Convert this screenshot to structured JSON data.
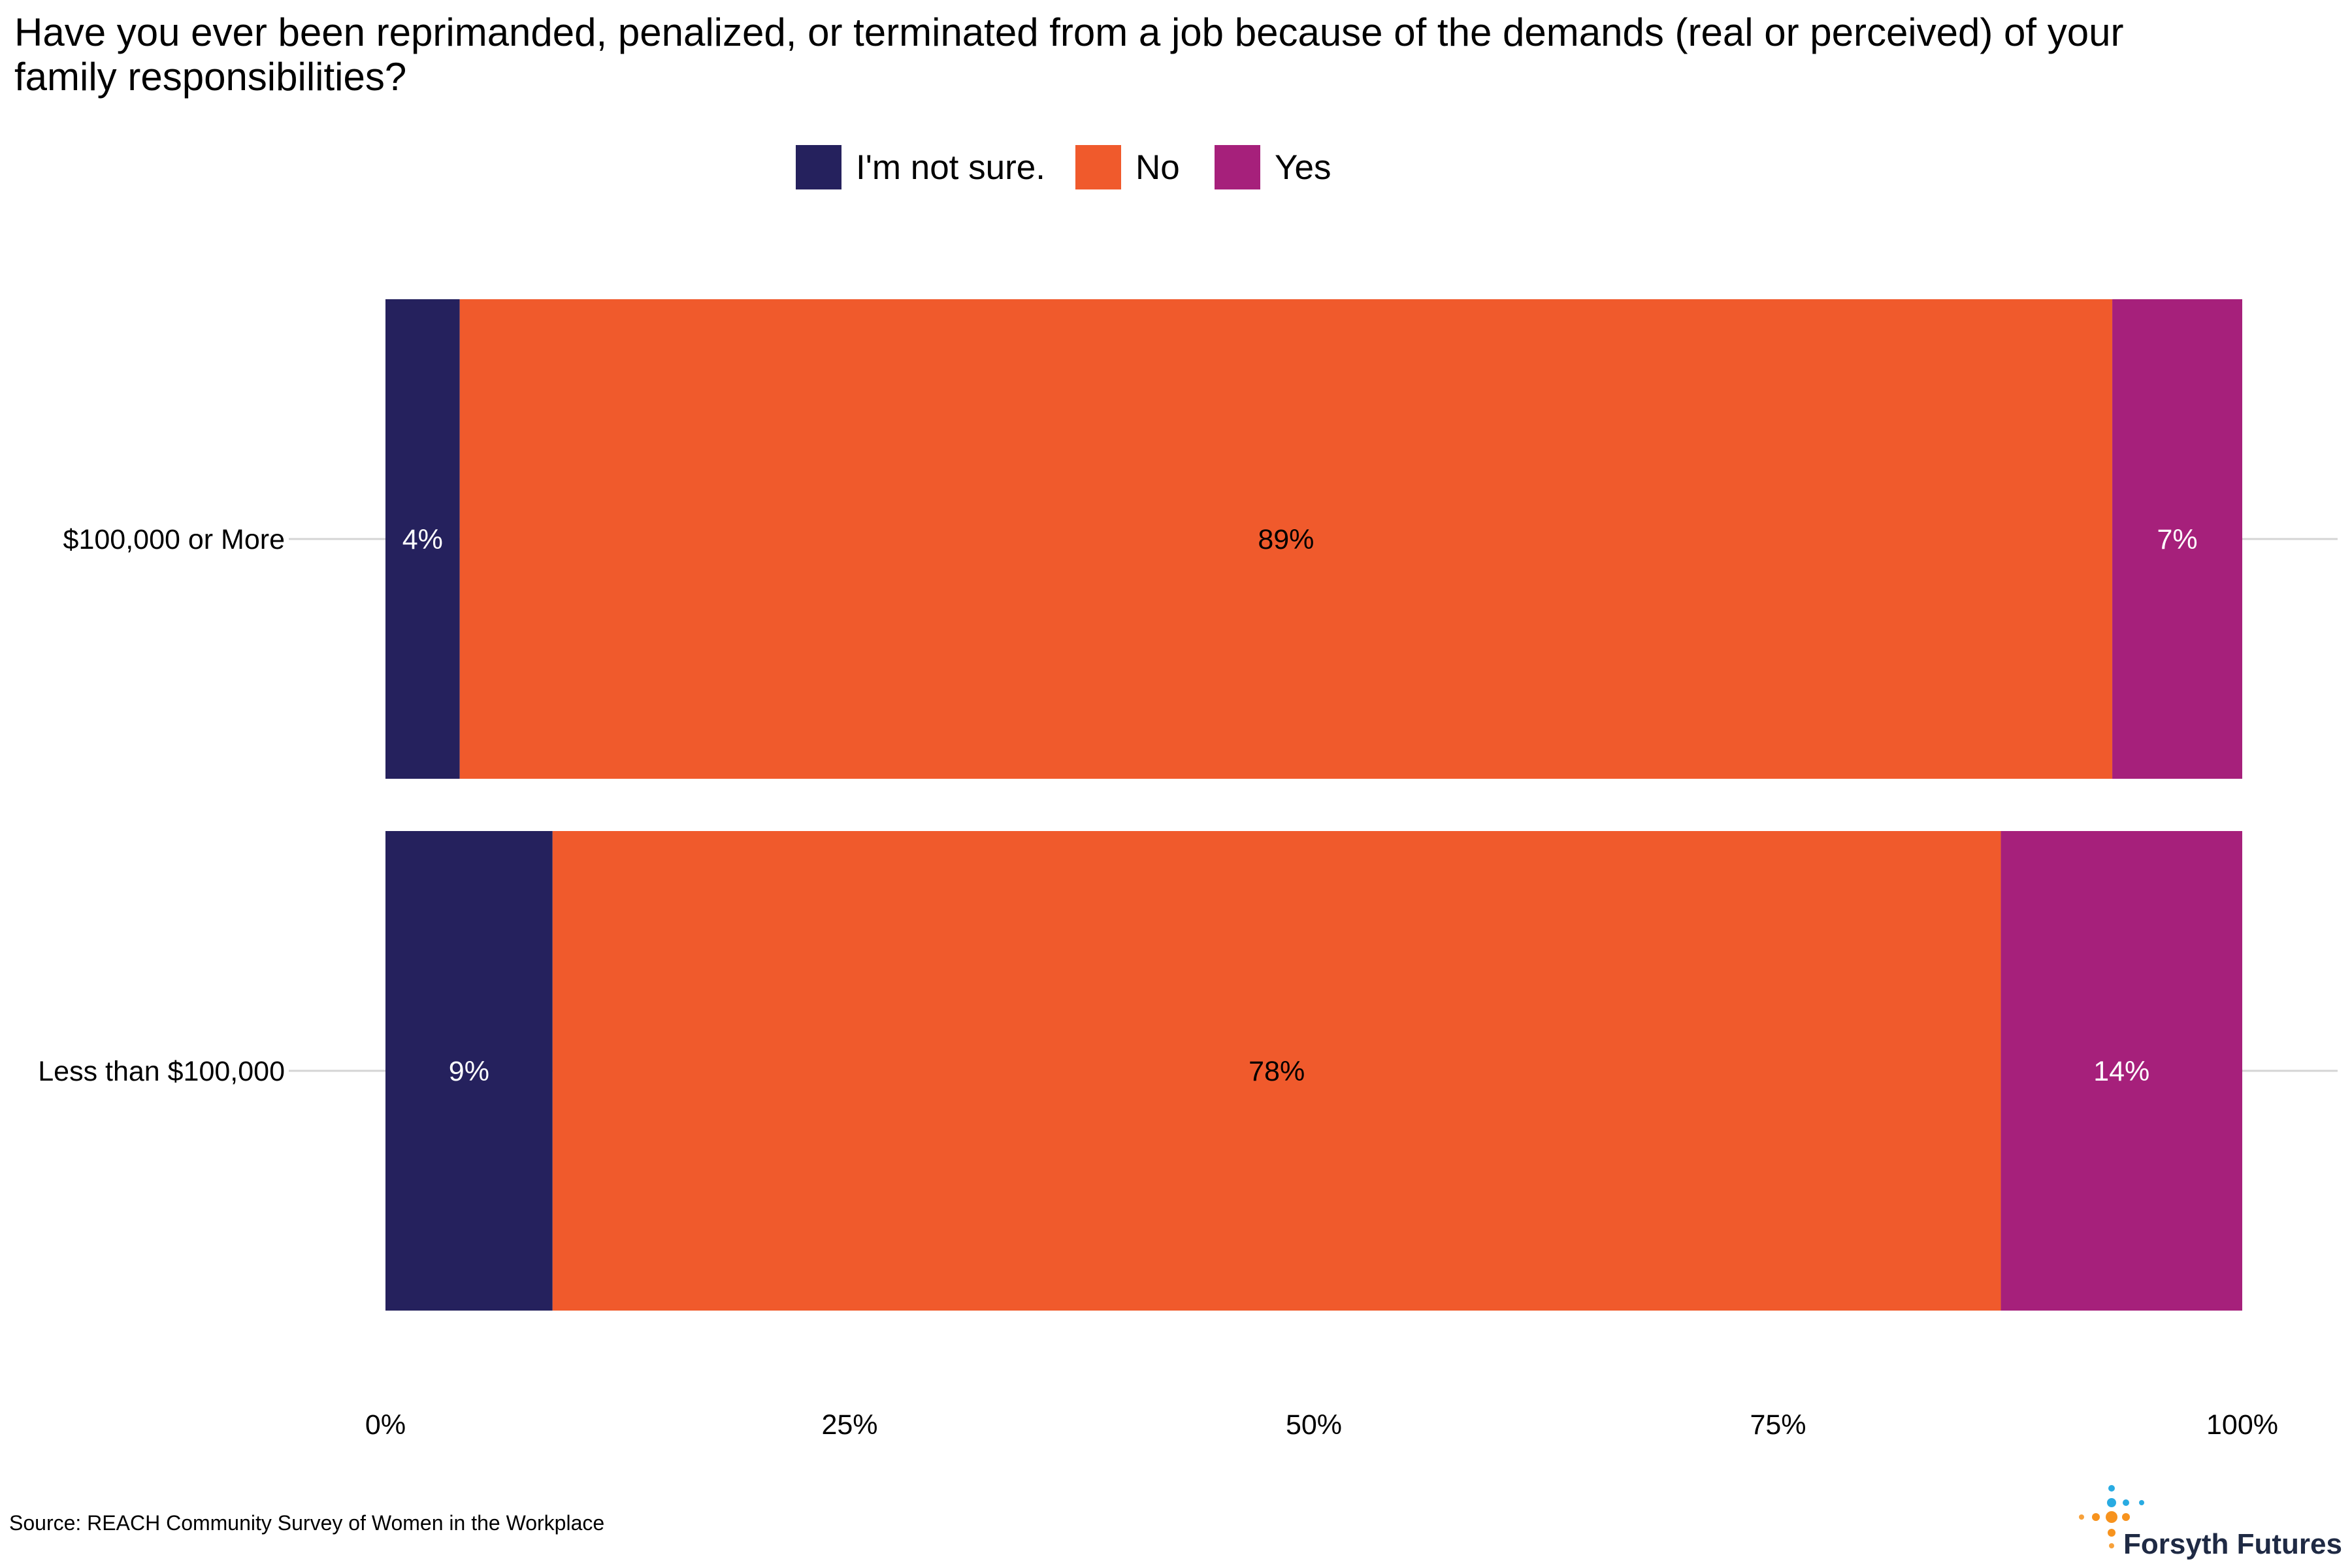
{
  "chart_data": {
    "type": "bar",
    "orientation": "horizontal",
    "stacked": true,
    "title_lines": [
      "Have you ever been reprimanded, penalized, or terminated from a job because of the demands (real or perceived) of your",
      "family responsibilities?"
    ],
    "categories": [
      "$100,000 or More",
      "Less than $100,000"
    ],
    "series": [
      {
        "name": "I'm not sure.",
        "color": "#25215d",
        "values": [
          4,
          9
        ],
        "labels": [
          "4%",
          "9%"
        ],
        "label_color": "#ffffff"
      },
      {
        "name": "No",
        "color": "#f05a2c",
        "values": [
          89,
          78
        ],
        "labels": [
          "89%",
          "78%"
        ],
        "label_color": "#000000"
      },
      {
        "name": "Yes",
        "color": "#a6207b",
        "values": [
          7,
          14
        ],
        "labels": [
          "7%",
          "14%"
        ],
        "label_color": "#ffffff"
      }
    ],
    "xlim": [
      0,
      100
    ],
    "x_ticks": [
      0,
      25,
      50,
      75,
      100
    ],
    "x_tick_labels": [
      "0%",
      "25%",
      "50%",
      "75%",
      "100%"
    ],
    "xlabel": "",
    "ylabel": "",
    "grid": "horizontal major lines at categories",
    "legend_position": "top"
  },
  "footer": {
    "source": "Source: REACH Community Survey of Women in the Workplace",
    "brand": "Forsyth Futures",
    "brand_logo_icon": "dot-cross-logo-icon"
  }
}
